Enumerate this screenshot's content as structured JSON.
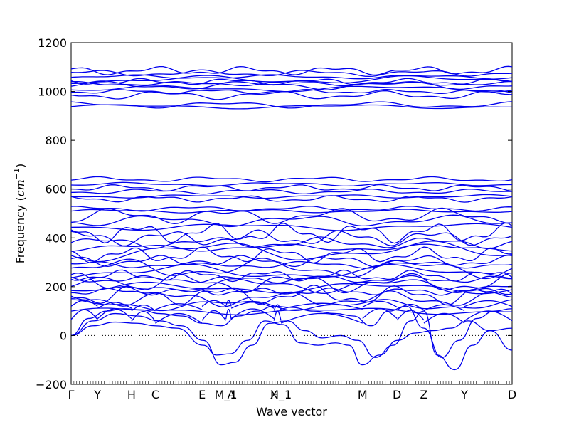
{
  "chart_data": {
    "type": "line",
    "xlabel": "Wave vector",
    "ylabel_text": "Frequency (",
    "ylabel_unit_base": "cm",
    "ylabel_unit_exp": "−1",
    "ylabel_close": ")",
    "ylim": [
      -200,
      1200
    ],
    "y_ticks": [
      -200,
      0,
      200,
      400,
      600,
      800,
      1000,
      1200
    ],
    "x_ticks": [
      {
        "label": "Γ",
        "pos": 0.0
      },
      {
        "label": "Y",
        "pos": 0.06
      },
      {
        "label": "H",
        "pos": 0.137
      },
      {
        "label": "C",
        "pos": 0.191
      },
      {
        "label": "E",
        "pos": 0.297
      },
      {
        "label": "M_1",
        "pos": 0.351
      },
      {
        "label": "A",
        "pos": 0.363
      },
      {
        "label": "X",
        "pos": 0.46
      },
      {
        "label": "H_1",
        "pos": 0.476
      },
      {
        "label": "M",
        "pos": 0.661
      },
      {
        "label": "D",
        "pos": 0.739
      },
      {
        "label": "Z",
        "pos": 0.8
      },
      {
        "label": "Y",
        "pos": 0.892
      },
      {
        "label": "D",
        "pos": 1.0
      }
    ],
    "reference_line": {
      "y": 0,
      "style": "dotted"
    },
    "series_color": "#0000ee",
    "high_bands": [
      938,
      945,
      985,
      1000,
      1012,
      1025,
      1032,
      1040,
      1048,
      1060,
      1075,
      1085
    ],
    "mid_bands": [
      510,
      520,
      560,
      570,
      590,
      605,
      620,
      640
    ],
    "low_bands": [
      100,
      125,
      150,
      165,
      180,
      195,
      205,
      215,
      230,
      245,
      260,
      275,
      290,
      305,
      330,
      345,
      360,
      380,
      400,
      420,
      445,
      470,
      490
    ],
    "soft_modes": [
      {
        "x": [
          0.0,
          0.05,
          0.1,
          0.15,
          0.19,
          0.24,
          0.3,
          0.33,
          0.36,
          0.4,
          0.44,
          0.48,
          0.52,
          0.56,
          0.6,
          0.63,
          0.66,
          0.7,
          0.74,
          0.78,
          0.82,
          0.86,
          0.9,
          0.95,
          1.0
        ],
        "y": [
          0,
          40,
          55,
          50,
          40,
          30,
          -40,
          -80,
          -75,
          -20,
          60,
          45,
          -30,
          -40,
          -30,
          -40,
          -120,
          -80,
          -20,
          10,
          20,
          30,
          60,
          20,
          -60
        ]
      },
      {
        "x": [
          0.0,
          0.05,
          0.1,
          0.15,
          0.2,
          0.25,
          0.3,
          0.34,
          0.37,
          0.41,
          0.45,
          0.49,
          0.53,
          0.57,
          0.61,
          0.65,
          0.69,
          0.73,
          0.77,
          0.8,
          0.83,
          0.87,
          0.91,
          0.95,
          1.0
        ],
        "y": [
          0,
          60,
          90,
          80,
          60,
          40,
          -20,
          -120,
          -110,
          -40,
          50,
          60,
          20,
          -10,
          0,
          -20,
          -90,
          -40,
          60,
          100,
          -80,
          -140,
          -40,
          20,
          30
        ]
      },
      {
        "x": [
          0.0,
          0.04,
          0.08,
          0.12,
          0.16,
          0.2,
          0.25,
          0.3,
          0.34,
          0.38,
          0.42,
          0.46,
          0.5,
          0.55,
          0.6,
          0.64,
          0.68,
          0.72,
          0.76,
          0.8,
          0.84,
          0.88,
          0.92,
          0.96,
          1.0
        ],
        "y": [
          0,
          70,
          100,
          110,
          105,
          90,
          80,
          50,
          40,
          80,
          100,
          120,
          115,
          100,
          90,
          80,
          40,
          100,
          120,
          30,
          -90,
          -20,
          70,
          100,
          110
        ]
      }
    ]
  }
}
